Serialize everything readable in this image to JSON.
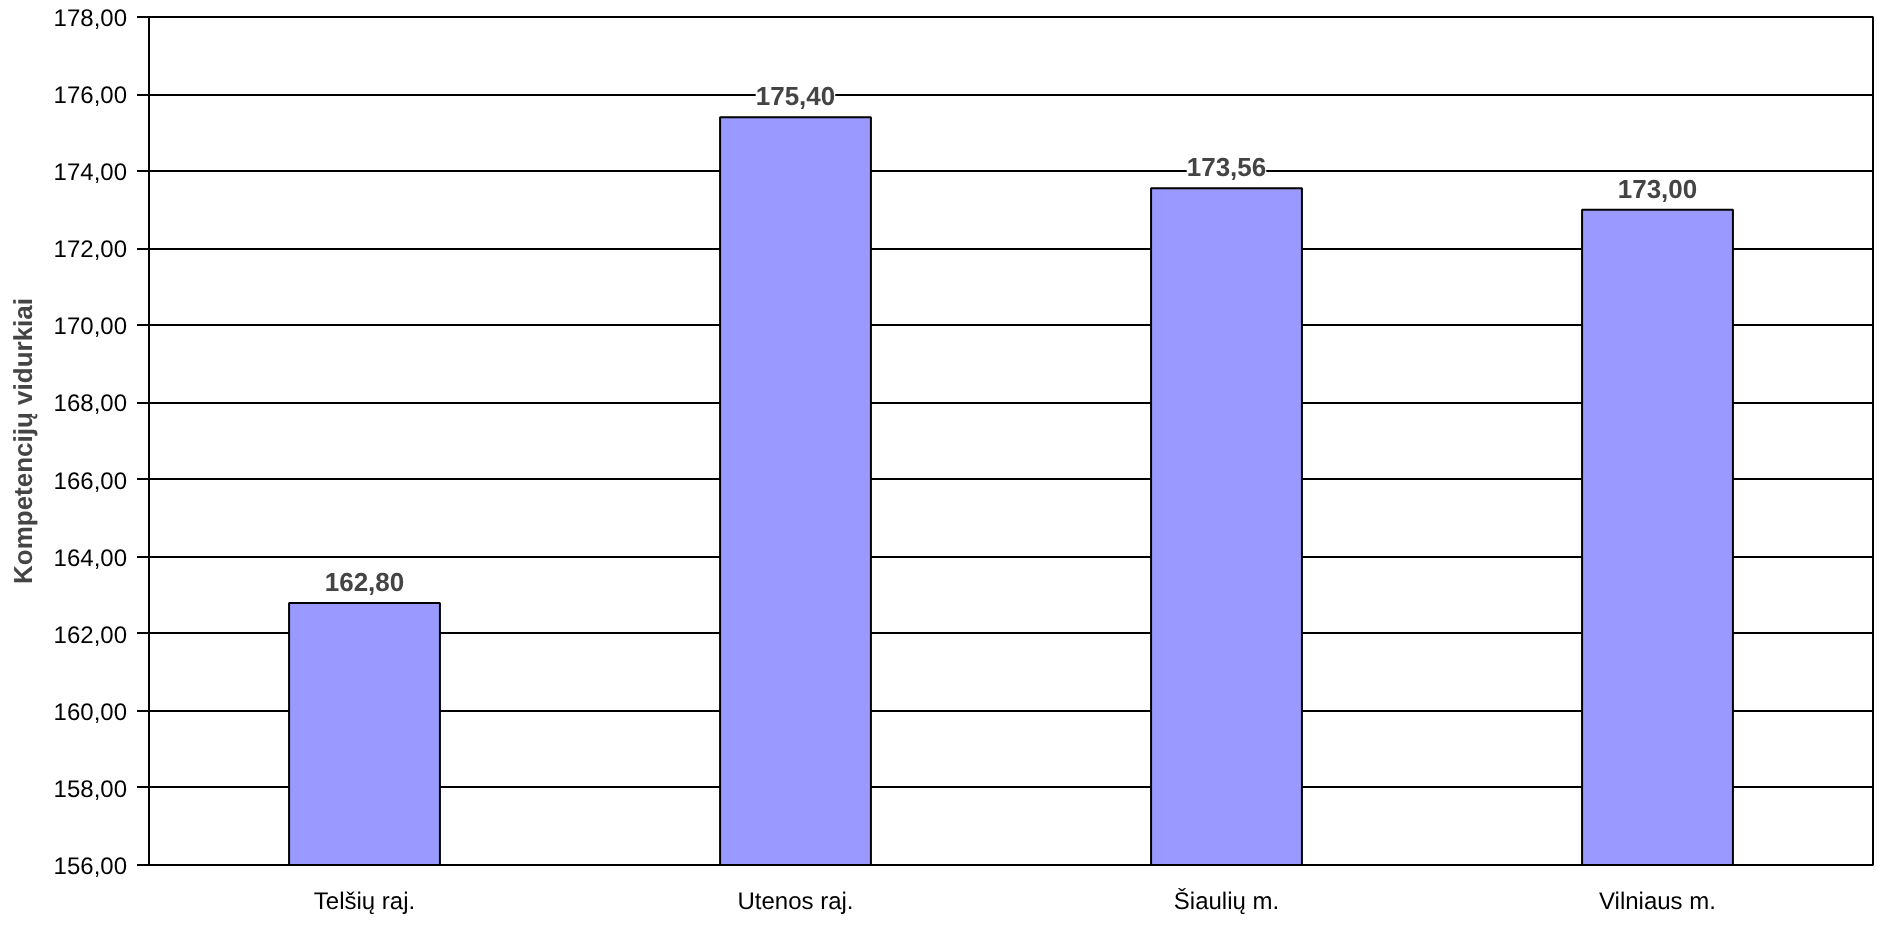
{
  "chart_data": {
    "type": "bar",
    "ylabel": "Kompetencijų vidurkiai",
    "categories": [
      "Telšių raj.",
      "Utenos raj.",
      "Šiaulių m.",
      "Vilniaus m."
    ],
    "values": [
      162.8,
      175.4,
      173.56,
      173.0
    ],
    "value_labels": [
      "162,80",
      "175,40",
      "173,56",
      "173,00"
    ],
    "color": "#9999ff",
    "ylim": [
      156,
      178
    ],
    "yticks": [
      {
        "value": 156,
        "label": "156,00"
      },
      {
        "value": 158,
        "label": "158,00"
      },
      {
        "value": 160,
        "label": "160,00"
      },
      {
        "value": 162,
        "label": "162,00"
      },
      {
        "value": 164,
        "label": "164,00"
      },
      {
        "value": 166,
        "label": "166,00"
      },
      {
        "value": 168,
        "label": "168,00"
      },
      {
        "value": 170,
        "label": "170,00"
      },
      {
        "value": 172,
        "label": "172,00"
      },
      {
        "value": 174,
        "label": "174,00"
      },
      {
        "value": 176,
        "label": "176,00"
      },
      {
        "value": 178,
        "label": "178,00"
      }
    ],
    "grid": "y"
  }
}
